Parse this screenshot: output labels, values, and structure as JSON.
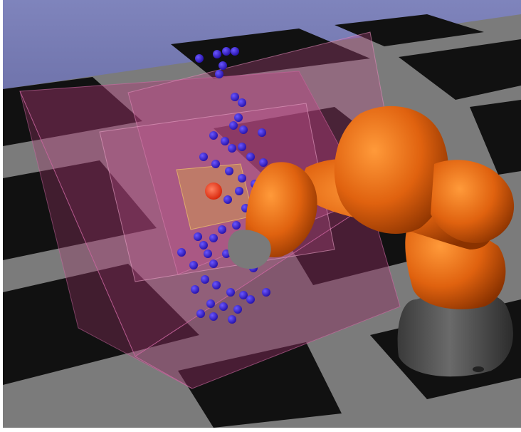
{
  "scene": {
    "type": "3d-robot-simulation-render",
    "colors": {
      "sky": "#7a7fb6",
      "floor_light": "#787878",
      "floor_dark": "#0b0b0b",
      "robot_orange": "#e0620f",
      "robot_base_gray": "#5c5c5c",
      "workspace_box": "#b03a78",
      "target_sphere": "#ff2d12",
      "sample_points": "#3b1fd6"
    },
    "icons": [
      "robot-arm",
      "sample-point-cloud",
      "target-marker",
      "workspace-boxes"
    ]
  }
}
